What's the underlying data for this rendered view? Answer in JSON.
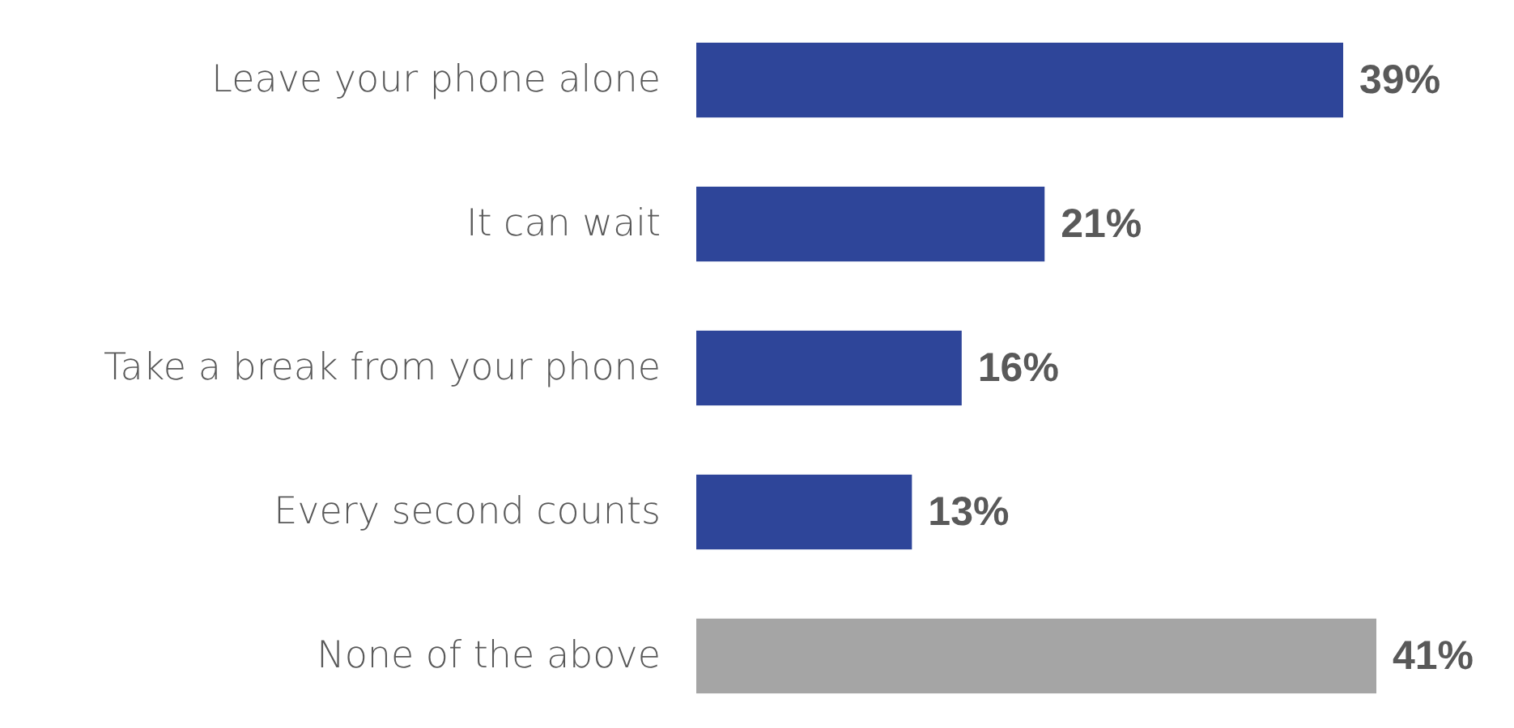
{
  "chart_data": {
    "type": "bar",
    "orientation": "horizontal",
    "categories": [
      "Leave your phone alone",
      "It can wait",
      "Take a break from your phone",
      "Every second counts",
      "None of the above"
    ],
    "values": [
      39,
      21,
      16,
      13,
      41
    ],
    "colors": [
      "#2e4599",
      "#2e4599",
      "#2e4599",
      "#2e4599",
      "#a5a5a5"
    ],
    "value_labels": [
      "39%",
      "21%",
      "16%",
      "13%",
      "41%"
    ],
    "tick_labels": "y"
  }
}
